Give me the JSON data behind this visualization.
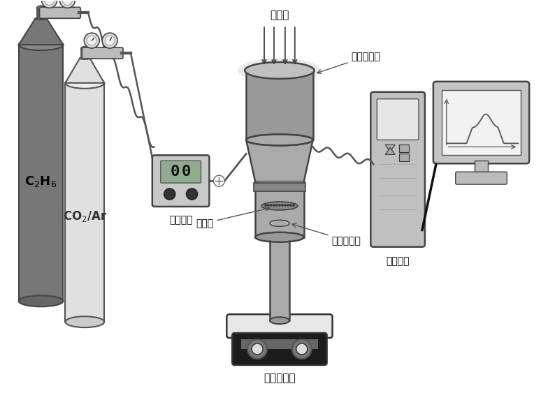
{
  "bg_color": "#ffffff",
  "labels": {
    "uv": "紫外光",
    "quartz": "石英玻璃窩",
    "flow_control": "流量控制",
    "catalyst": "催化剂",
    "magnetic_stirrer_bar": "磁力搔拌子",
    "magnetic_stirrer": "磁力搔拌器",
    "gc": "气相色谱",
    "c2h6": "C$_2$H$_6$",
    "co2ar": "CO$_2$/Ar"
  }
}
